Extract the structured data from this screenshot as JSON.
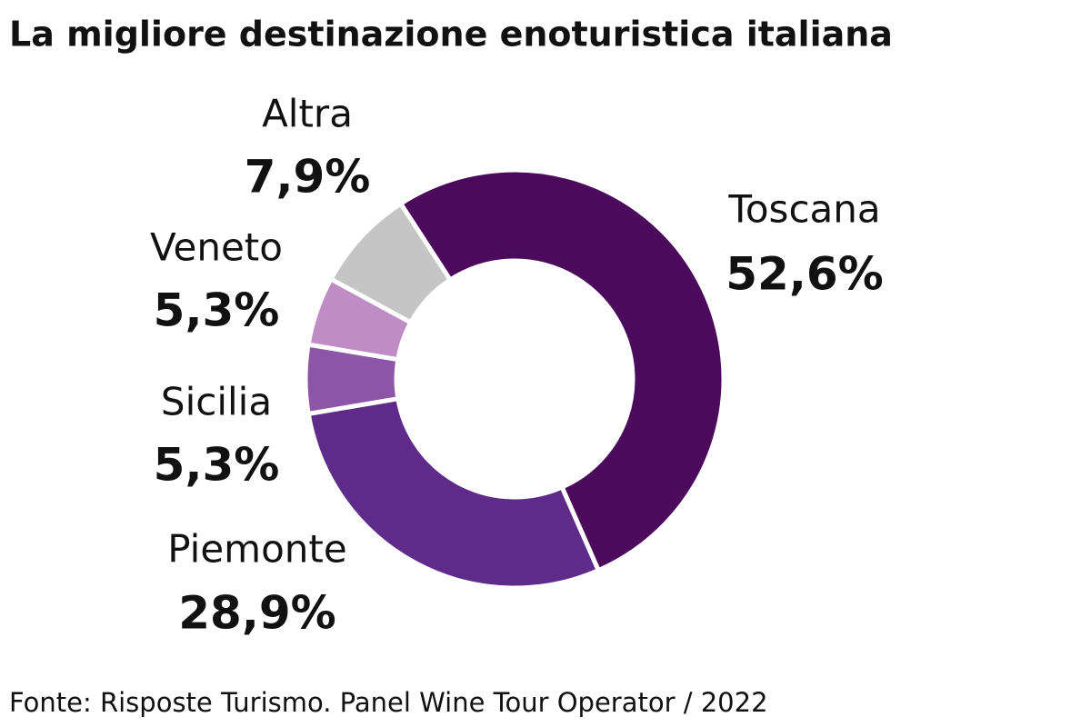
{
  "chart_data": {
    "type": "donut",
    "title": "La migliore destinazione enoturistica italiana",
    "categories": [
      "Toscana",
      "Piemonte",
      "Sicilia",
      "Veneto",
      "Altra"
    ],
    "values": [
      52.6,
      28.9,
      5.3,
      5.3,
      7.9
    ],
    "value_labels": [
      "52,6%",
      "28,9%",
      "5,3%",
      "5,3%",
      "7,9%"
    ],
    "colors": [
      "#4b0a5c",
      "#5f2b8a",
      "#8d55a7",
      "#c08cc5",
      "#c5c5c5"
    ],
    "source": "Fonte: Risposte Turismo. Panel Wine Tour Operator / 2022"
  }
}
